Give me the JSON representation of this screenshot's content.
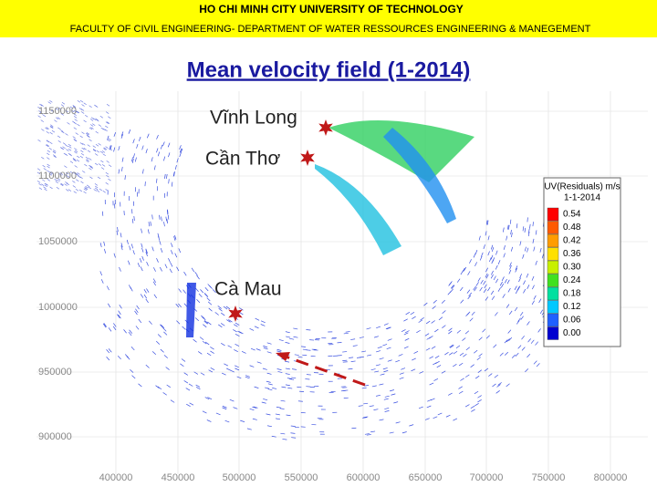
{
  "header": {
    "university": "HO CHI MINH CITY UNIVERSITY OF TECHNOLOGY",
    "department": "FACULTY OF CIVIL ENGINEERING- DEPARTMENT OF WATER RESSOURCES ENGINEERING & MANEGEMENT"
  },
  "title": "Mean velocity field (1-2014)",
  "map": {
    "places": [
      "Vĩnh Long",
      "Cần Thơ",
      "Cà Mau"
    ],
    "x_ticks": [
      "400000",
      "450000",
      "500000",
      "550000",
      "600000",
      "650000",
      "700000",
      "750000",
      "800000"
    ],
    "y_ticks": [
      "1150000",
      "1100000",
      "1050000",
      "1000000",
      "950000",
      "900000"
    ],
    "legend": {
      "title": "UV(Residuals) m/s",
      "date": "1-1-2014",
      "entries": [
        {
          "label": "0.54",
          "color": "#ff0000"
        },
        {
          "label": "0.48",
          "color": "#ff5a00"
        },
        {
          "label": "0.42",
          "color": "#ff9c00"
        },
        {
          "label": "0.36",
          "color": "#ffe000"
        },
        {
          "label": "0.30",
          "color": "#c8f000"
        },
        {
          "label": "0.24",
          "color": "#40e020"
        },
        {
          "label": "0.18",
          "color": "#00e0a0"
        },
        {
          "label": "0.12",
          "color": "#00c8ff"
        },
        {
          "label": "0.06",
          "color": "#2060ff"
        },
        {
          "label": "0.00",
          "color": "#0000d0"
        }
      ]
    }
  }
}
